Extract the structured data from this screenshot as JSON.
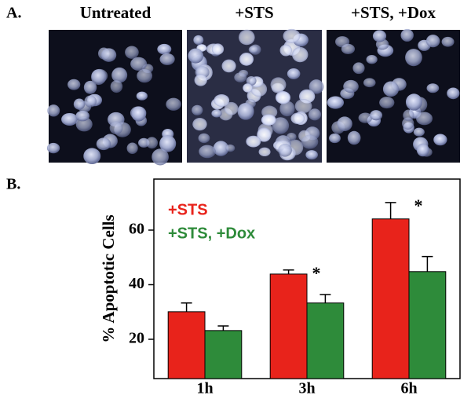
{
  "panels": {
    "a": {
      "label": "A.",
      "captions": [
        "Untreated",
        "+STS",
        "+STS, +Dox"
      ]
    },
    "b": {
      "label": "B."
    }
  },
  "chart_data": {
    "type": "bar",
    "ylabel": "% Apoptotic Cells",
    "categories": [
      "1h",
      "3h",
      "6h"
    ],
    "series": [
      {
        "name": "+STS",
        "color": "#e8231b",
        "values": [
          30.1,
          43.9,
          64.1
        ],
        "errors": [
          3.2,
          1.5,
          6.0
        ]
      },
      {
        "name": "+STS, +Dox",
        "color": "#2e8b3a",
        "values": [
          23.2,
          33.3,
          44.8
        ],
        "errors": [
          1.7,
          3.1,
          5.5
        ]
      }
    ],
    "annotations": [
      null,
      "*",
      "*"
    ],
    "ylim": [
      5.6,
      78.7
    ],
    "yticks": [
      20,
      40,
      60
    ],
    "legend": "upper left"
  }
}
